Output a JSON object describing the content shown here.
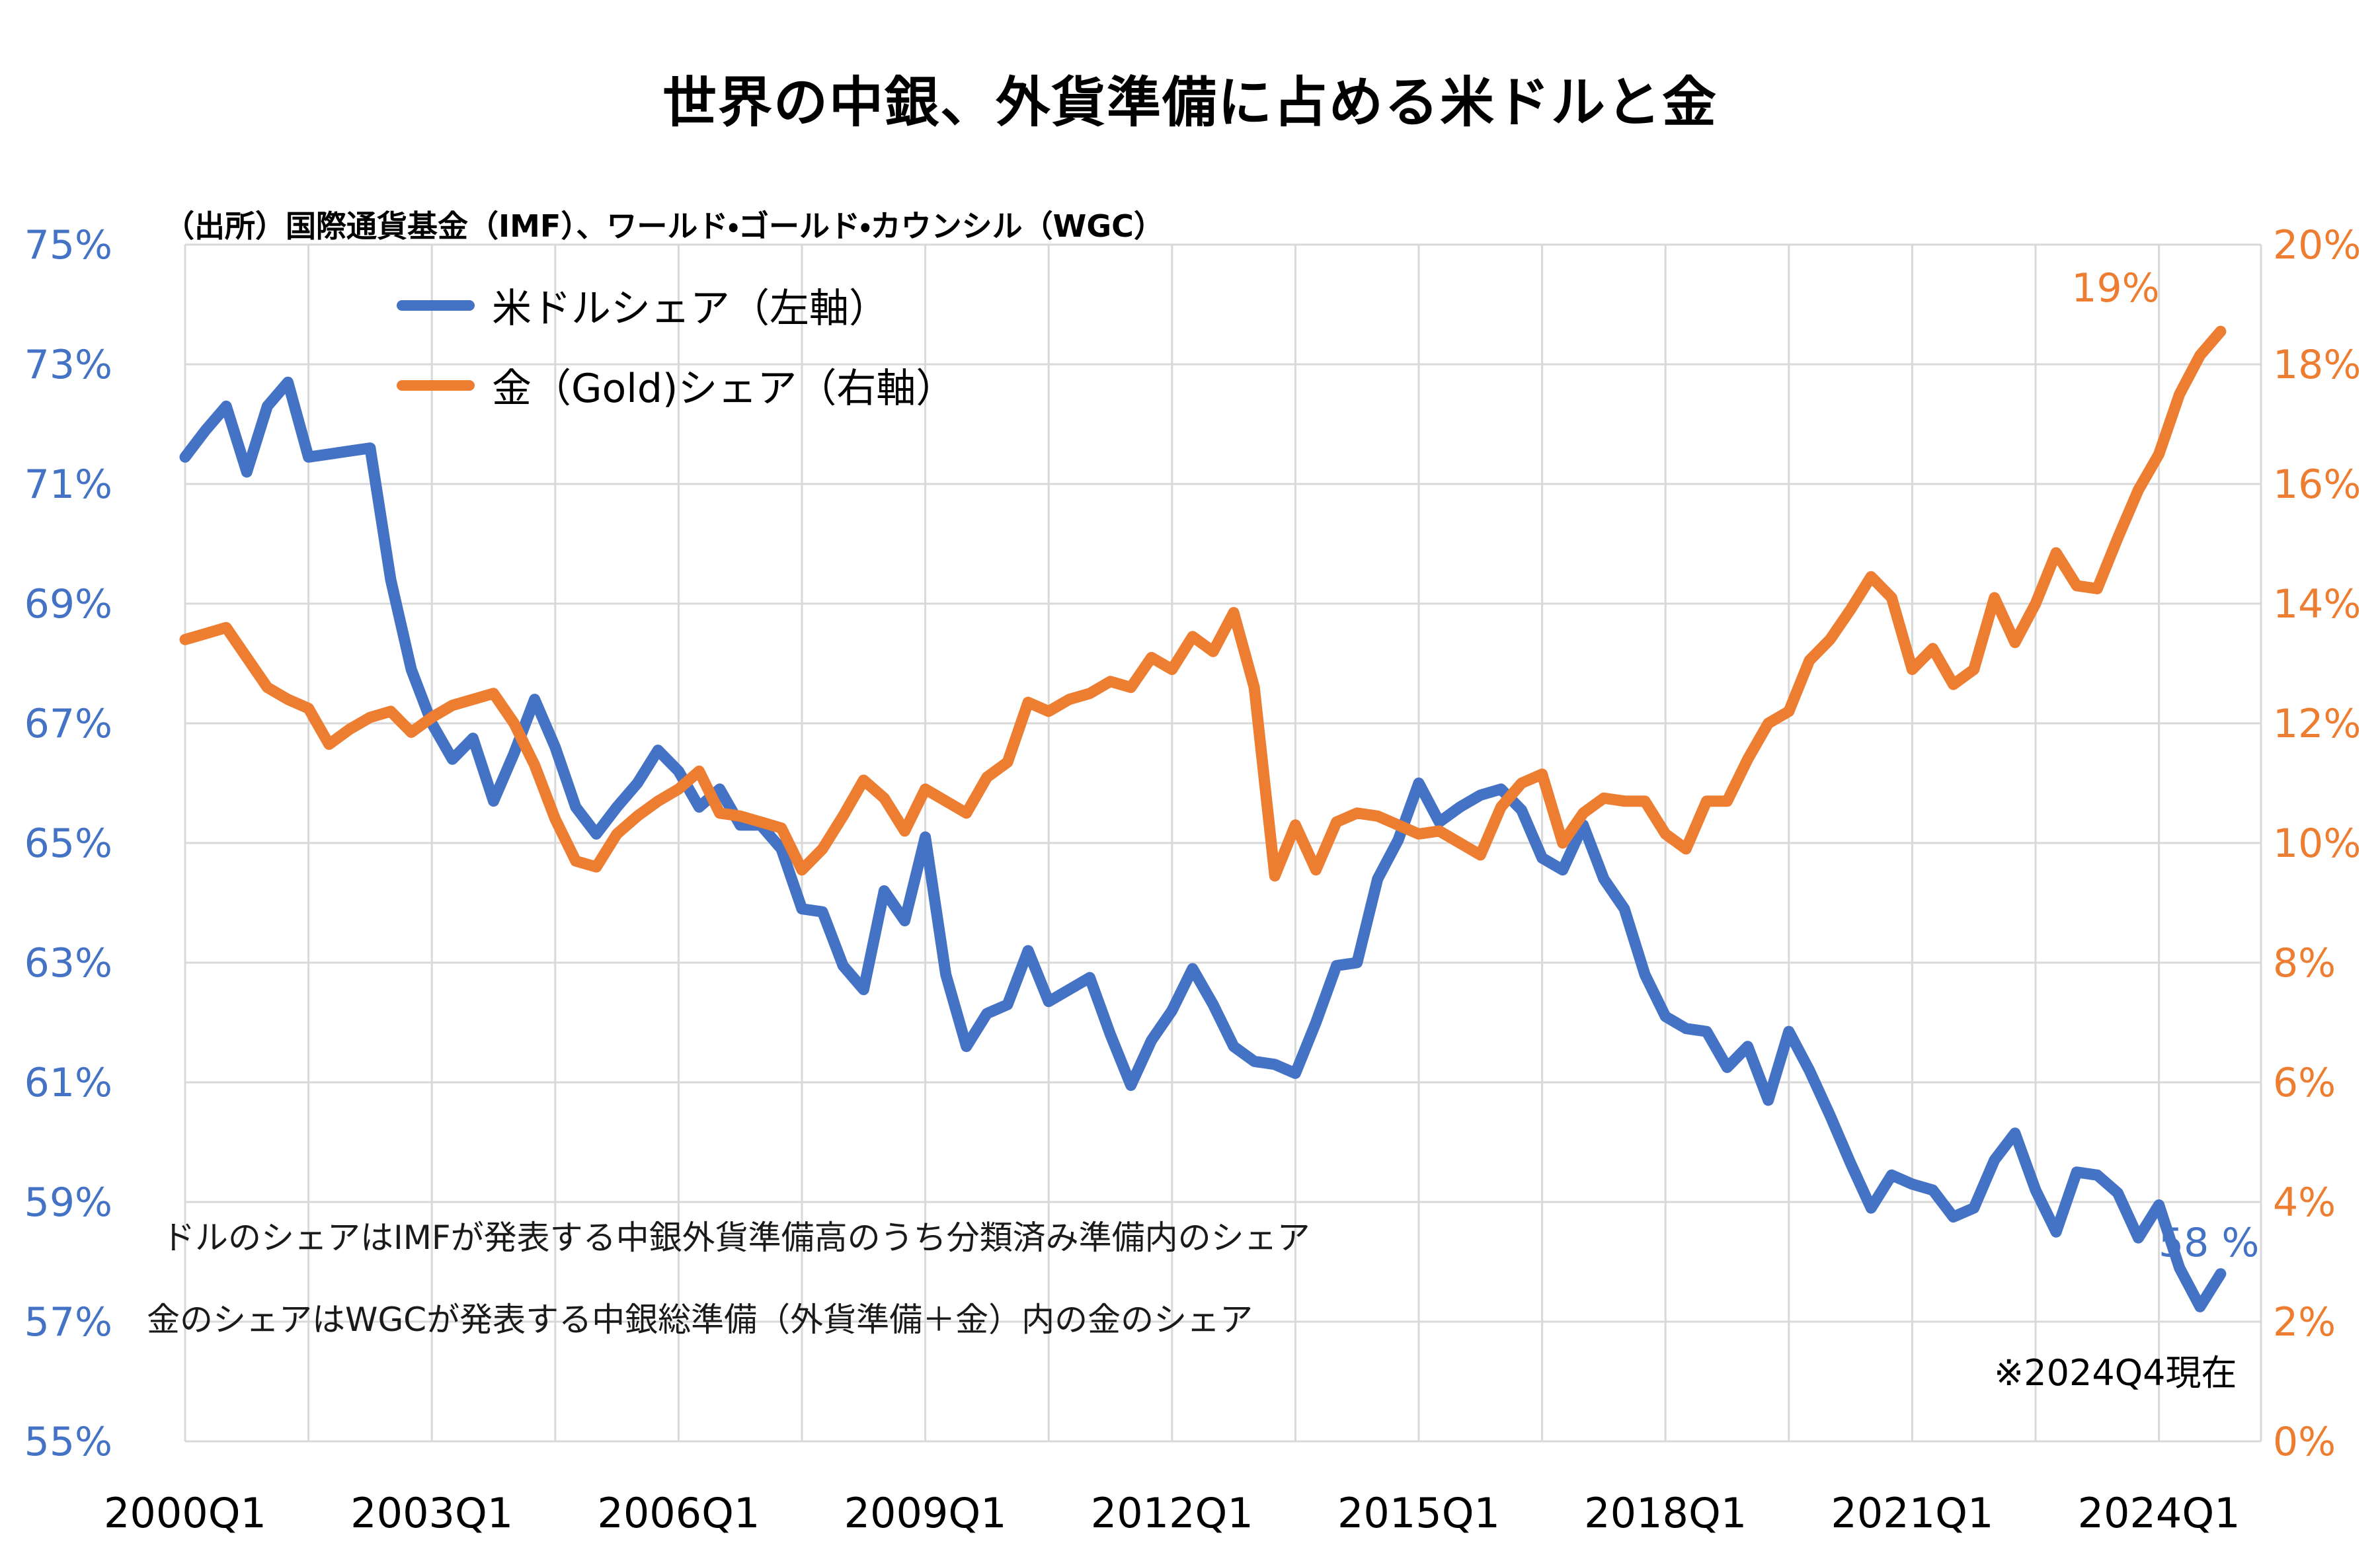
{
  "title": "世界の中銀、外貨準備に占める米ドルと金",
  "source": "（出所）国際通貨基金（IMF）、ワールド・ゴールド・カウンシル（WGC）",
  "legend": {
    "usd": {
      "label": "米ドルシェア（左軸）",
      "color": "#4472C4"
    },
    "gold": {
      "label": "金（Gold)シェア（右軸）",
      "color": "#ED7D31"
    }
  },
  "notes": {
    "line1": "ドルのシェアはIMFが発表する中銀外貨準備高のうち分類済み準備内のシェア",
    "line2": "金のシェアはWGCが発表する中銀総準備（外貨準備＋金）内の金のシェア"
  },
  "footnote": "※2024Q4現在",
  "annotations": {
    "gold_end_label": "19%",
    "usd_end_label": "58 %"
  },
  "chart_data": {
    "type": "line",
    "x_start": "2000Q1",
    "x_end": "2024Q4",
    "frequency": "quarterly",
    "x_tick_labels": [
      "2000Q1",
      "2003Q1",
      "2006Q1",
      "2009Q1",
      "2012Q1",
      "2015Q1",
      "2018Q1",
      "2021Q1",
      "2024Q1"
    ],
    "left_axis": {
      "title": "米ドルシェア",
      "min": 55,
      "max": 75,
      "step": 2,
      "unit": "%",
      "color": "#4472C4",
      "tick_labels": [
        "75%",
        "73%",
        "71%",
        "69%",
        "67%",
        "65%",
        "63%",
        "61%",
        "59%",
        "57%",
        "55%"
      ]
    },
    "right_axis": {
      "title": "金（Gold)シェア",
      "min": 0,
      "max": 20,
      "step": 2,
      "unit": "%",
      "color": "#ED7D31",
      "tick_labels": [
        "20%",
        "18%",
        "16%",
        "14%",
        "12%",
        "10%",
        "8%",
        "6%",
        "4%",
        "2%",
        "0%"
      ]
    },
    "grid": true,
    "legend_position": "top-left-inside",
    "series": [
      {
        "name": "米ドルシェア（左軸）",
        "axis": "left",
        "color": "#4472C4",
        "values": [
          71.45,
          71.9,
          72.3,
          71.2,
          72.3,
          72.7,
          71.45,
          71.5,
          71.55,
          71.6,
          69.4,
          67.9,
          67.0,
          66.4,
          66.75,
          65.7,
          66.5,
          67.4,
          66.6,
          65.6,
          65.15,
          65.6,
          66.0,
          66.55,
          66.2,
          65.6,
          65.9,
          65.3,
          65.3,
          64.9,
          63.9,
          63.85,
          62.95,
          62.55,
          64.2,
          63.7,
          65.1,
          62.8,
          61.6,
          62.15,
          62.3,
          63.2,
          62.35,
          62.55,
          62.75,
          61.8,
          60.95,
          61.7,
          62.2,
          62.9,
          62.3,
          61.6,
          61.35,
          61.3,
          61.15,
          62.0,
          62.95,
          63.0,
          64.4,
          65.05,
          66.0,
          65.35,
          65.6,
          65.8,
          65.9,
          65.55,
          64.75,
          64.55,
          65.3,
          64.4,
          63.9,
          62.8,
          62.1,
          61.9,
          61.85,
          61.25,
          61.6,
          60.7,
          61.85,
          61.2,
          60.45,
          59.65,
          58.9,
          59.45,
          59.3,
          59.2,
          58.75,
          58.9,
          59.7,
          60.15,
          59.2,
          58.5,
          59.5,
          59.45,
          59.15,
          58.4,
          58.95,
          57.9,
          57.25,
          57.8
        ]
      },
      {
        "name": "金（Gold)シェア（右軸）",
        "axis": "right",
        "color": "#ED7D31",
        "values": [
          13.4,
          13.5,
          13.6,
          13.1,
          12.6,
          12.4,
          12.25,
          11.65,
          11.9,
          12.1,
          12.2,
          11.85,
          12.1,
          12.3,
          12.4,
          12.5,
          12.0,
          11.3,
          10.4,
          9.7,
          9.6,
          10.15,
          10.45,
          10.7,
          10.9,
          11.2,
          10.5,
          10.45,
          10.35,
          10.25,
          9.55,
          9.9,
          10.45,
          11.05,
          10.75,
          10.2,
          10.9,
          10.7,
          10.5,
          11.1,
          11.35,
          12.35,
          12.2,
          12.4,
          12.5,
          12.7,
          12.6,
          13.1,
          12.9,
          13.45,
          13.2,
          13.85,
          12.6,
          9.45,
          10.3,
          9.55,
          10.35,
          10.5,
          10.45,
          10.3,
          10.15,
          10.2,
          10.0,
          9.8,
          10.6,
          11.0,
          11.15,
          10.0,
          10.5,
          10.75,
          10.7,
          10.7,
          10.15,
          9.9,
          10.7,
          10.7,
          11.4,
          12.0,
          12.2,
          13.05,
          13.4,
          13.9,
          14.45,
          14.1,
          12.9,
          13.25,
          12.65,
          12.9,
          14.1,
          13.35,
          14.0,
          14.85,
          14.3,
          14.25,
          15.1,
          15.9,
          16.5,
          17.5,
          18.15,
          18.55
        ]
      }
    ]
  }
}
